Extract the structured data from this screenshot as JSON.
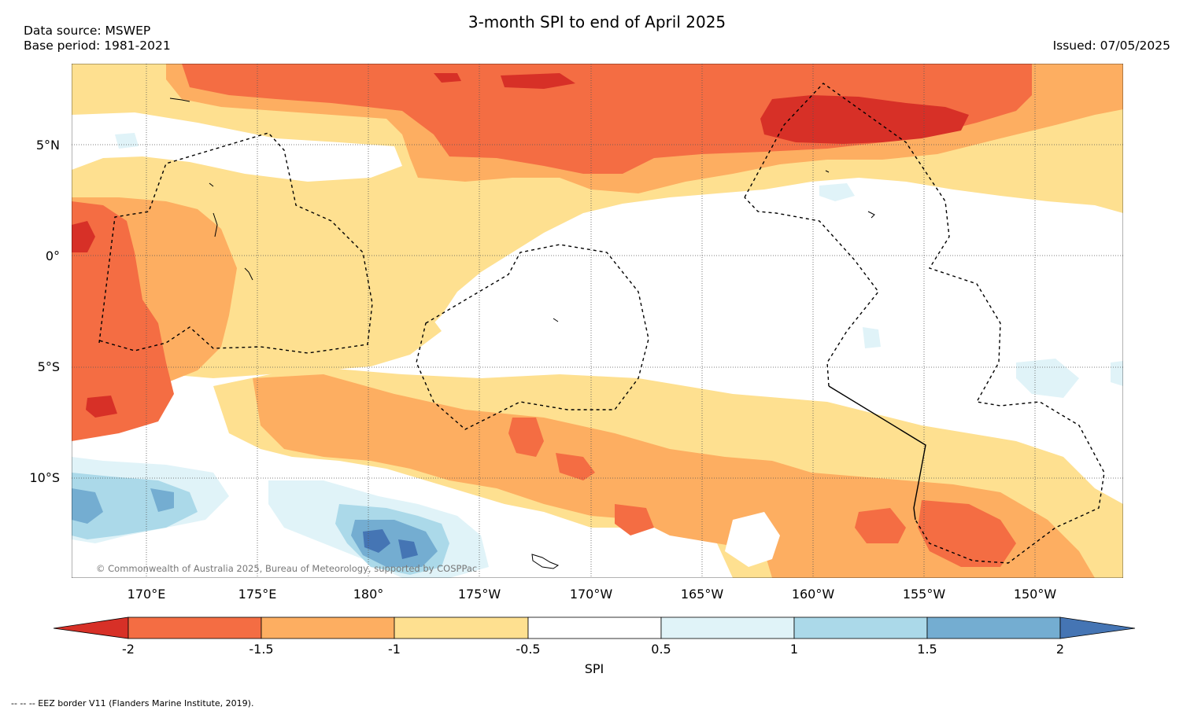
{
  "title": "3-month SPI to end of April 2025",
  "data_source": "Data source: MSWEP",
  "base_period": "Base period: 1981-2021",
  "issued": "Issued: 07/05/2025",
  "copyright": "© Commonwealth of Australia 2025, Bureau of Meteorology, supported by COSPPac",
  "footnote": "--  --  -- EEZ border V11 (Flanders Marine Institute, 2019).",
  "latitude_labels": [
    "5°N",
    "0°",
    "5°S",
    "10°S"
  ],
  "longitude_labels": [
    "170°E",
    "175°E",
    "180°",
    "175°W",
    "170°W",
    "165°W",
    "160°W",
    "155°W",
    "150°W"
  ],
  "colorbar": {
    "label": "SPI",
    "ticks": [
      "-2",
      "-1.5",
      "-1",
      "-0.5",
      "0.5",
      "1",
      "1.5",
      "2"
    ],
    "colors": [
      "#d73027",
      "#f46d43",
      "#fdae61",
      "#fee090",
      "#ffffff",
      "#e0f3f8",
      "#abd9e9",
      "#74add1",
      "#4575b4"
    ]
  }
}
